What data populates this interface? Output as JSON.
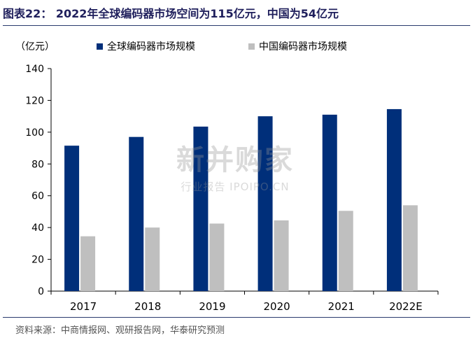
{
  "figure": {
    "title": "图表22： 2022年全球编码器市场空间为115亿元，中国为54亿元",
    "source": "资料来源：中商情报网、观研报告网，华泰研究预测",
    "watermark_main": "新并购家",
    "watermark_sub": "行业报告 IPOIPO.CN"
  },
  "colors": {
    "global": "#002f7a",
    "china": "#bfbfbf",
    "axis": "#000000",
    "rule": "#2a3b6e"
  },
  "chart_data": {
    "type": "bar",
    "unit_label": "（亿元）",
    "categories": [
      "2017",
      "2018",
      "2019",
      "2020",
      "2021",
      "2022E"
    ],
    "series": [
      {
        "name": "全球编码器市场规模",
        "values": [
          91.5,
          97,
          103.5,
          110,
          111,
          114.5
        ]
      },
      {
        "name": "中国编码器市场规模",
        "values": [
          34.5,
          40,
          42.5,
          44.5,
          50.5,
          54
        ]
      }
    ],
    "ylim": [
      0,
      140
    ],
    "yticks": [
      "0",
      "20",
      "40",
      "60",
      "80",
      "100",
      "120",
      "140"
    ],
    "grid": false,
    "legend_position": "top"
  }
}
